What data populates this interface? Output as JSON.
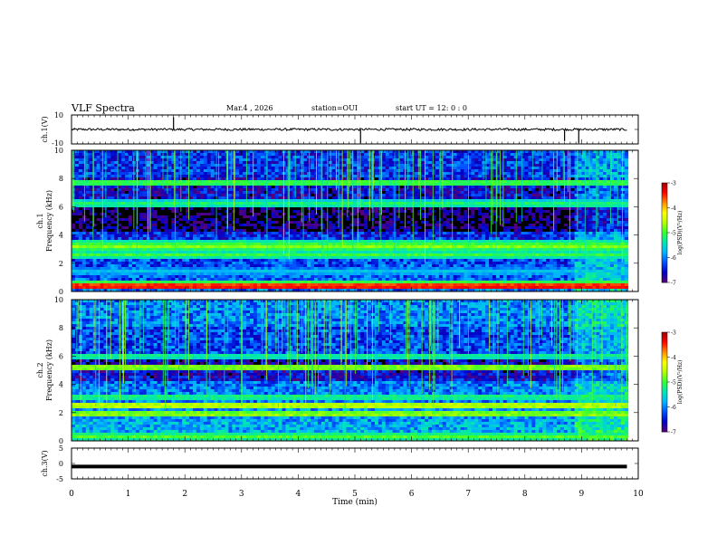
{
  "header": {
    "title": "VLF Spectra",
    "date": "Mar.4 , 2026",
    "station": "station=OUI",
    "start": "start UT =  12: 0 : 0"
  },
  "colors": {
    "colormap": [
      "#5a0078",
      "#0000c8",
      "#0050ff",
      "#00b4ff",
      "#00e6b4",
      "#32ff32",
      "#b4ff00",
      "#ffff00",
      "#ff8c00",
      "#ff0000",
      "#a00000"
    ],
    "background": "#000000",
    "trace": "#000000"
  },
  "chart_data": [
    {
      "id": "ch1-voltage",
      "type": "line",
      "ylabel": "ch.1(V)",
      "ylim": [
        -10,
        10
      ],
      "yticks": [
        "10",
        "-10"
      ],
      "xlim": [
        0,
        10
      ],
      "series": [
        {
          "x": [
            0,
            1,
            2,
            3,
            4,
            5,
            6,
            7,
            8,
            8.9,
            9.8
          ],
          "values": [
            0,
            0,
            0,
            0,
            0,
            0,
            0,
            0,
            0,
            0,
            0
          ]
        }
      ],
      "spikes": [
        {
          "x": 1.8,
          "y": 8.5
        },
        {
          "x": 5.1,
          "y": -9.5
        },
        {
          "x": 8.7,
          "y": -8.0
        },
        {
          "x": 8.95,
          "y": -9.5
        }
      ]
    },
    {
      "id": "ch1-spectrogram",
      "type": "heatmap",
      "ylabel": "ch.1\nFrequency (kHz)",
      "ylim": [
        0,
        10
      ],
      "yticks": [
        "0",
        "2",
        "4",
        "6",
        "8",
        "10"
      ],
      "xlim": [
        0,
        10
      ],
      "data_end_min": 9.82,
      "colorbar": {
        "label": "log(PSD)(V²/Hz)",
        "range": [
          -7,
          -3
        ],
        "ticks": [
          "-3",
          "-4",
          "-5",
          "-6",
          "-7"
        ]
      },
      "bands": [
        {
          "f": 0.35,
          "level": -3.3
        },
        {
          "f": 0.55,
          "level": -4.8
        },
        {
          "f": 1.4,
          "level": -5.6
        },
        {
          "f": 2.6,
          "level": -5.0
        },
        {
          "f": 3.2,
          "level": -4.7
        },
        {
          "f": 3.5,
          "level": -5.2
        },
        {
          "f": 6.2,
          "level": -5.1
        },
        {
          "f": 7.7,
          "level": -4.9
        }
      ]
    },
    {
      "id": "ch2-spectrogram",
      "type": "heatmap",
      "ylabel": "ch.2\nFrequency (kHz)",
      "ylim": [
        0,
        10
      ],
      "yticks": [
        "0",
        "2",
        "4",
        "6",
        "8",
        "10"
      ],
      "xlim": [
        0,
        10
      ],
      "data_end_min": 9.82,
      "colorbar": {
        "label": "log(PSD)(V²/Hz)",
        "range": [
          -7,
          -3
        ],
        "ticks": [
          "-3",
          "-4",
          "-5",
          "-6",
          "-7"
        ]
      },
      "bands": [
        {
          "f": 0.3,
          "level": -4.9
        },
        {
          "f": 1.9,
          "level": -4.6
        },
        {
          "f": 2.5,
          "level": -4.4
        },
        {
          "f": 3.1,
          "level": -5.1
        },
        {
          "f": 5.2,
          "level": -4.6
        },
        {
          "f": 6.0,
          "level": -5.2
        }
      ]
    },
    {
      "id": "ch3-voltage",
      "type": "line",
      "ylabel": "ch.3(V)",
      "ylim": [
        -5,
        5
      ],
      "yticks": [
        "5",
        "0",
        "-5"
      ],
      "xlim": [
        0,
        10
      ],
      "xlabel": "Time (min)",
      "xticks": [
        "0",
        "1",
        "2",
        "3",
        "4",
        "5",
        "6",
        "7",
        "8",
        "9",
        "10"
      ],
      "series": [
        {
          "x": [
            0,
            9.8
          ],
          "values": [
            -1.0,
            -1.0
          ]
        }
      ]
    }
  ]
}
